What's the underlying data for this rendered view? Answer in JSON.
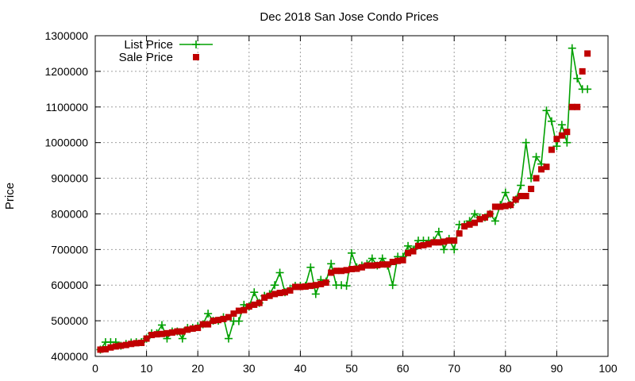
{
  "chart_data": {
    "type": "line",
    "title": "Dec 2018 San Jose Condo Prices",
    "xlabel": "",
    "ylabel": "Price",
    "xlim": [
      0,
      100
    ],
    "ylim": [
      400000,
      1300000
    ],
    "xticks": [
      0,
      10,
      20,
      30,
      40,
      50,
      60,
      70,
      80,
      90,
      100
    ],
    "yticks": [
      400000,
      500000,
      600000,
      700000,
      800000,
      900000,
      1000000,
      1100000,
      1200000,
      1300000
    ],
    "grid": true,
    "legend_position": "top-left",
    "series": [
      {
        "name": "List Price",
        "color": "#00a000",
        "marker": "plus",
        "style": "line+points",
        "x": [
          1,
          2,
          3,
          4,
          5,
          6,
          7,
          8,
          9,
          10,
          11,
          12,
          13,
          14,
          15,
          16,
          17,
          18,
          19,
          20,
          21,
          22,
          23,
          24,
          25,
          26,
          27,
          28,
          29,
          30,
          31,
          32,
          33,
          34,
          35,
          36,
          37,
          38,
          39,
          40,
          41,
          42,
          43,
          44,
          45,
          46,
          47,
          48,
          49,
          50,
          51,
          52,
          53,
          54,
          55,
          56,
          57,
          58,
          59,
          60,
          61,
          62,
          63,
          64,
          65,
          66,
          67,
          68,
          69,
          70,
          71,
          72,
          73,
          74,
          75,
          76,
          77,
          78,
          79,
          80,
          81,
          82,
          83,
          84,
          85,
          86,
          87,
          88,
          89,
          90,
          91,
          92,
          93,
          94,
          95,
          96
        ],
        "values": [
          419000,
          440000,
          440000,
          440000,
          430000,
          435000,
          439000,
          440000,
          440000,
          450000,
          465000,
          465000,
          488000,
          450000,
          470000,
          470000,
          450000,
          480000,
          480000,
          485000,
          490000,
          520000,
          500000,
          500000,
          510000,
          450000,
          499000,
          499000,
          545000,
          540000,
          580000,
          550000,
          570000,
          575000,
          600000,
          635000,
          580000,
          590000,
          598000,
          598000,
          598000,
          650000,
          575000,
          615000,
          610000,
          660000,
          600000,
          600000,
          598000,
          690000,
          650000,
          655000,
          660000,
          675000,
          655000,
          675000,
          655000,
          600000,
          680000,
          680000,
          710000,
          700000,
          725000,
          725000,
          725000,
          725000,
          750000,
          700000,
          730000,
          700000,
          770000,
          770000,
          780000,
          800000,
          790000,
          790000,
          800000,
          780000,
          825000,
          860000,
          825000,
          840000,
          880000,
          1000000,
          900000,
          960000,
          940000,
          1090000,
          1060000,
          990000,
          1050000,
          1000000,
          1265000,
          1180000,
          1150000,
          1150000
        ]
      },
      {
        "name": "Sale Price",
        "color": "#c00000",
        "marker": "square",
        "style": "points",
        "x": [
          1,
          2,
          3,
          4,
          5,
          6,
          7,
          8,
          9,
          10,
          11,
          12,
          13,
          14,
          15,
          16,
          17,
          18,
          19,
          20,
          21,
          22,
          23,
          24,
          25,
          26,
          27,
          28,
          29,
          30,
          31,
          32,
          33,
          34,
          35,
          36,
          37,
          38,
          39,
          40,
          41,
          42,
          43,
          44,
          45,
          46,
          47,
          48,
          49,
          50,
          51,
          52,
          53,
          54,
          55,
          56,
          57,
          58,
          59,
          60,
          61,
          62,
          63,
          64,
          65,
          66,
          67,
          68,
          69,
          70,
          71,
          72,
          73,
          74,
          75,
          76,
          77,
          78,
          79,
          80,
          81,
          82,
          83,
          84,
          85,
          86,
          87,
          88,
          89,
          90,
          91,
          92,
          93,
          94,
          95,
          96
        ],
        "values": [
          419000,
          420000,
          425000,
          428000,
          430000,
          432000,
          435000,
          437000,
          438000,
          450000,
          460000,
          462000,
          463000,
          465000,
          467000,
          470000,
          470000,
          475000,
          478000,
          480000,
          490000,
          490000,
          500000,
          502000,
          505000,
          510000,
          520000,
          528000,
          530000,
          540000,
          545000,
          550000,
          565000,
          570000,
          575000,
          578000,
          580000,
          585000,
          595000,
          595000,
          596000,
          598000,
          600000,
          603000,
          607000,
          635000,
          640000,
          640000,
          642000,
          645000,
          646000,
          650000,
          655000,
          655000,
          656000,
          658000,
          658000,
          665000,
          668000,
          670000,
          690000,
          695000,
          710000,
          712000,
          715000,
          720000,
          720000,
          722000,
          725000,
          725000,
          745000,
          765000,
          770000,
          775000,
          785000,
          790000,
          800000,
          820000,
          820000,
          822000,
          825000,
          840000,
          850000,
          850000,
          870000,
          900000,
          925000,
          932000,
          980000,
          1010000,
          1020000,
          1030000,
          1100000,
          1100000,
          1200000,
          1250000
        ]
      }
    ]
  }
}
